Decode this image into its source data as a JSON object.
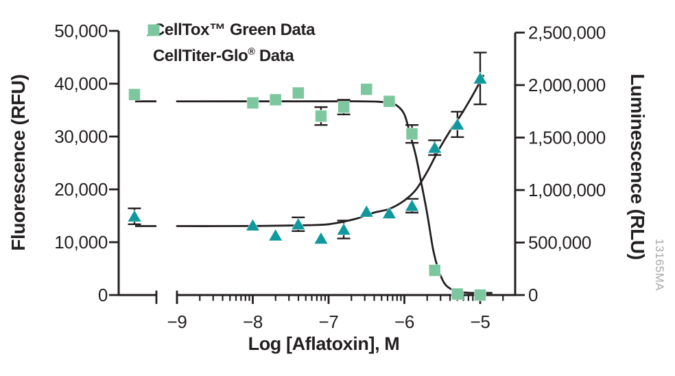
{
  "chart_data": {
    "type": "scatter",
    "description": "Dose-response curves: cytotoxicity (fluorescence) rises and viability (luminescence) falls with increasing aflatoxin concentration",
    "x_axis": {
      "label": "Log [Aflatoxin], M",
      "scale": "log10",
      "major_ticks": [
        -9,
        -8,
        -7,
        -6,
        -5
      ],
      "tick_labels": [
        "−9",
        "−8",
        "−7",
        "−6",
        "−5"
      ],
      "minor_tick_multiples": [
        2,
        3,
        4,
        5,
        6,
        7,
        8,
        9
      ],
      "axis_break_before": -9,
      "control_point_left_of_break": true
    },
    "y_left": {
      "label": "Fluorescence (RFU)",
      "range": [
        0,
        50000
      ],
      "ticks": [
        0,
        10000,
        20000,
        30000,
        40000,
        50000
      ],
      "tick_labels": [
        "0",
        "10,000",
        "20,000",
        "30,000",
        "40,000",
        "50,000"
      ]
    },
    "y_right": {
      "label": "Luminescence (RLU)",
      "range": [
        0,
        2500000
      ],
      "ticks": [
        0,
        500000,
        1000000,
        1500000,
        2000000,
        2500000
      ],
      "tick_labels": [
        "0",
        "500,000",
        "1,000,000",
        "1,500,000",
        "2,000,000",
        "2,500,000"
      ]
    },
    "legend": {
      "position": "top-left-inside"
    },
    "series": [
      {
        "name": "CellTox™ Green Data",
        "marker": "triangle",
        "color": "#0f999c",
        "axis": "left",
        "control": {
          "value": 14900,
          "error": 1500
        },
        "points": [
          {
            "x": -8.0,
            "y": 13200,
            "error": null
          },
          {
            "x": -7.7,
            "y": 11300,
            "error": null
          },
          {
            "x": -7.4,
            "y": 13400,
            "error": 1300
          },
          {
            "x": -7.1,
            "y": 10700,
            "error": null
          },
          {
            "x": -6.8,
            "y": 12400,
            "error": 1700
          },
          {
            "x": -6.5,
            "y": 15800,
            "error": null
          },
          {
            "x": -6.2,
            "y": 15500,
            "error": null
          },
          {
            "x": -5.9,
            "y": 16900,
            "error": 1300
          },
          {
            "x": -5.6,
            "y": 27900,
            "error": 1400
          },
          {
            "x": -5.3,
            "y": 32300,
            "error": 2400
          },
          {
            "x": -5.0,
            "y": 41000,
            "error": 4900
          }
        ],
        "fit_flat_value": 13050,
        "fit_curve": [
          [
            -9.0,
            13050
          ],
          [
            -8.4,
            13050
          ],
          [
            -7.9,
            13080
          ],
          [
            -7.5,
            13150
          ],
          [
            -7.2,
            13250
          ],
          [
            -7.0,
            13400
          ],
          [
            -6.8,
            13900
          ],
          [
            -6.6,
            14600
          ],
          [
            -6.4,
            15600
          ],
          [
            -6.2,
            16300
          ],
          [
            -6.0,
            17900
          ],
          [
            -5.85,
            19900
          ],
          [
            -5.7,
            23300
          ],
          [
            -5.55,
            27400
          ],
          [
            -5.4,
            31000
          ],
          [
            -5.25,
            34200
          ],
          [
            -5.1,
            37800
          ],
          [
            -4.96,
            41500
          ]
        ]
      },
      {
        "name": "CellTiter-Glo® Data",
        "marker": "square",
        "color": "#7cc79e",
        "axis": "right",
        "control": {
          "value": 1910000,
          "error": null
        },
        "points": [
          {
            "x": -8.0,
            "y": 1830000,
            "error": null
          },
          {
            "x": -7.7,
            "y": 1860000,
            "error": null
          },
          {
            "x": -7.4,
            "y": 1925000,
            "error": null
          },
          {
            "x": -7.1,
            "y": 1705000,
            "error": 85000
          },
          {
            "x": -6.8,
            "y": 1790000,
            "error": 70000
          },
          {
            "x": -6.5,
            "y": 1960000,
            "error": null
          },
          {
            "x": -6.2,
            "y": 1845000,
            "error": null
          },
          {
            "x": -5.9,
            "y": 1535000,
            "error": 85000
          },
          {
            "x": -5.6,
            "y": 235000,
            "error": null
          },
          {
            "x": -5.3,
            "y": 10000,
            "error": null
          },
          {
            "x": -5.0,
            "y": 0,
            "error": null
          }
        ],
        "fit_flat_value": 1845000,
        "fit_curve": [
          [
            -9.0,
            1845000
          ],
          [
            -8.0,
            1845000
          ],
          [
            -7.0,
            1845000
          ],
          [
            -6.6,
            1845000
          ],
          [
            -6.35,
            1842000
          ],
          [
            -6.2,
            1830000
          ],
          [
            -6.1,
            1805000
          ],
          [
            -6.0,
            1720000
          ],
          [
            -5.92,
            1520000
          ],
          [
            -5.85,
            1330000
          ],
          [
            -5.78,
            1080000
          ],
          [
            -5.7,
            780000
          ],
          [
            -5.62,
            430000
          ],
          [
            -5.55,
            240000
          ],
          [
            -5.47,
            110000
          ],
          [
            -5.38,
            55000
          ],
          [
            -5.28,
            30000
          ],
          [
            -5.15,
            21000
          ],
          [
            -5.0,
            20000
          ],
          [
            -4.85,
            20000
          ]
        ]
      }
    ],
    "watermark": "13165MA",
    "colors": {
      "axis": "#231f20",
      "curve": "#231f20",
      "tick_text": "#231f20",
      "watermark": "#a9a9a9"
    }
  }
}
